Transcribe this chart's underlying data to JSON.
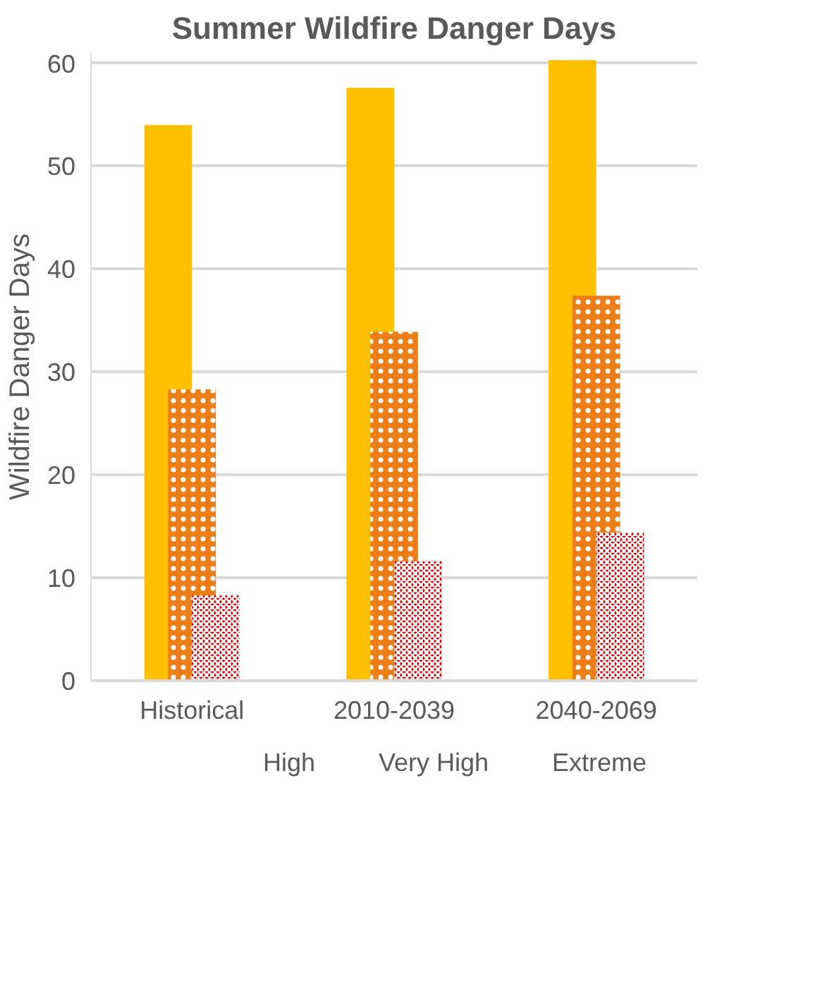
{
  "chart_data": {
    "type": "bar",
    "title": "Summer Wildfire Danger Days",
    "ylabel": "Wildfire Danger Days",
    "categories": [
      "Historical",
      "2010-2039",
      "2040-2069"
    ],
    "series": [
      {
        "name": "High",
        "color": "#ffc000",
        "values": [
          54.0,
          57.6,
          60.3
        ]
      },
      {
        "name": "Very High",
        "color": "#ed7d17",
        "values": [
          28.3,
          33.9,
          37.4
        ]
      },
      {
        "name": "Extreme",
        "color": "#c00000",
        "values": [
          8.3,
          11.6,
          14.4
        ]
      }
    ],
    "ylim": [
      0,
      61
    ],
    "yticks": [
      0,
      10,
      20,
      30,
      40,
      50,
      60
    ],
    "grid": "y",
    "legend": "bottom"
  }
}
